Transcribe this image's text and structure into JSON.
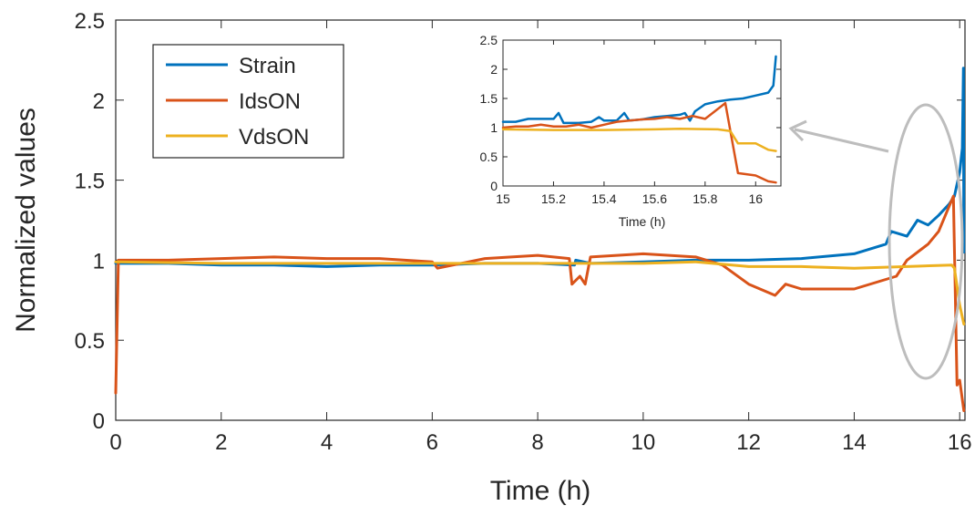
{
  "chart_data": [
    {
      "id": "main",
      "type": "line",
      "title": "",
      "xlabel": "Time (h)",
      "ylabel": "Normalized values",
      "xlim": [
        0,
        16.1
      ],
      "ylim": [
        0,
        2.5
      ],
      "xticks": [
        0,
        2,
        4,
        6,
        8,
        10,
        12,
        14,
        16
      ],
      "xtick_labels": [
        "0",
        "2",
        "4",
        "6",
        "8",
        "10",
        "12",
        "14",
        "16"
      ],
      "yticks": [
        0,
        0.5,
        1,
        1.5,
        2,
        2.5
      ],
      "ytick_labels": [
        "0",
        "0.5",
        "1",
        "1.5",
        "2",
        "2.5"
      ],
      "legend_position": "top-left",
      "grid": false,
      "series": [
        {
          "name": "Strain",
          "color": "#0072BD",
          "points": [
            [
              0,
              0.98
            ],
            [
              1,
              0.98
            ],
            [
              2,
              0.97
            ],
            [
              3,
              0.97
            ],
            [
              4,
              0.96
            ],
            [
              5,
              0.97
            ],
            [
              6,
              0.97
            ],
            [
              7,
              0.98
            ],
            [
              8,
              0.98
            ],
            [
              8.7,
              0.97
            ],
            [
              8.72,
              1.0
            ],
            [
              9,
              0.98
            ],
            [
              10,
              0.99
            ],
            [
              11,
              1.0
            ],
            [
              12,
              1.0
            ],
            [
              13,
              1.01
            ],
            [
              14,
              1.04
            ],
            [
              14.6,
              1.1
            ],
            [
              14.7,
              1.18
            ],
            [
              15,
              1.15
            ],
            [
              15.2,
              1.25
            ],
            [
              15.4,
              1.22
            ],
            [
              15.6,
              1.28
            ],
            [
              15.8,
              1.35
            ],
            [
              15.9,
              1.4
            ],
            [
              16.0,
              1.55
            ],
            [
              16.05,
              1.7
            ],
            [
              16.07,
              2.2
            ],
            [
              16.08,
              1.05
            ]
          ]
        },
        {
          "name": "IdsON",
          "color": "#D95319",
          "points": [
            [
              0,
              0.17
            ],
            [
              0.05,
              1.0
            ],
            [
              1,
              1.0
            ],
            [
              2,
              1.01
            ],
            [
              3,
              1.02
            ],
            [
              4,
              1.01
            ],
            [
              5,
              1.01
            ],
            [
              6,
              0.99
            ],
            [
              6.1,
              0.95
            ],
            [
              7,
              1.01
            ],
            [
              8,
              1.03
            ],
            [
              8.6,
              1.01
            ],
            [
              8.65,
              0.85
            ],
            [
              8.8,
              0.9
            ],
            [
              8.9,
              0.85
            ],
            [
              9.0,
              1.02
            ],
            [
              10,
              1.04
            ],
            [
              11,
              1.02
            ],
            [
              11.5,
              0.97
            ],
            [
              12,
              0.85
            ],
            [
              12.5,
              0.78
            ],
            [
              12.7,
              0.85
            ],
            [
              13,
              0.82
            ],
            [
              14,
              0.82
            ],
            [
              14.8,
              0.9
            ],
            [
              15,
              1.0
            ],
            [
              15.4,
              1.1
            ],
            [
              15.6,
              1.18
            ],
            [
              15.88,
              1.4
            ],
            [
              15.95,
              0.22
            ],
            [
              16.0,
              0.25
            ],
            [
              16.08,
              0.06
            ]
          ]
        },
        {
          "name": "VdsON",
          "color": "#EDB120",
          "points": [
            [
              0,
              0.99
            ],
            [
              2,
              0.98
            ],
            [
              4,
              0.98
            ],
            [
              6,
              0.98
            ],
            [
              8,
              0.98
            ],
            [
              10,
              0.98
            ],
            [
              11,
              0.99
            ],
            [
              12,
              0.96
            ],
            [
              13,
              0.96
            ],
            [
              14,
              0.95
            ],
            [
              15,
              0.96
            ],
            [
              15.85,
              0.97
            ],
            [
              15.9,
              0.95
            ],
            [
              16.0,
              0.72
            ],
            [
              16.08,
              0.6
            ]
          ]
        }
      ]
    },
    {
      "id": "inset",
      "type": "line",
      "title": "",
      "xlabel": "Time (h)",
      "ylabel": "",
      "xlim": [
        15,
        16.1
      ],
      "ylim": [
        0,
        2.5
      ],
      "xticks": [
        15,
        15.2,
        15.4,
        15.6,
        15.8,
        16
      ],
      "xtick_labels": [
        "15",
        "15.2",
        "15.4",
        "15.6",
        "15.8",
        "16"
      ],
      "yticks": [
        0,
        0.5,
        1,
        1.5,
        2,
        2.5
      ],
      "ytick_labels": [
        "0",
        "0.5",
        "1",
        "1.5",
        "2",
        "2.5"
      ],
      "grid": false,
      "series": [
        {
          "color": "#0072BD",
          "points": [
            [
              15,
              1.1
            ],
            [
              15.05,
              1.1
            ],
            [
              15.1,
              1.15
            ],
            [
              15.15,
              1.15
            ],
            [
              15.2,
              1.15
            ],
            [
              15.22,
              1.25
            ],
            [
              15.24,
              1.08
            ],
            [
              15.3,
              1.08
            ],
            [
              15.35,
              1.1
            ],
            [
              15.38,
              1.18
            ],
            [
              15.4,
              1.12
            ],
            [
              15.45,
              1.12
            ],
            [
              15.48,
              1.25
            ],
            [
              15.5,
              1.12
            ],
            [
              15.55,
              1.14
            ],
            [
              15.6,
              1.18
            ],
            [
              15.65,
              1.2
            ],
            [
              15.7,
              1.22
            ],
            [
              15.72,
              1.25
            ],
            [
              15.74,
              1.12
            ],
            [
              15.76,
              1.28
            ],
            [
              15.8,
              1.4
            ],
            [
              15.85,
              1.45
            ],
            [
              15.9,
              1.48
            ],
            [
              15.95,
              1.5
            ],
            [
              16.0,
              1.55
            ],
            [
              16.05,
              1.6
            ],
            [
              16.07,
              1.72
            ],
            [
              16.08,
              2.22
            ]
          ]
        },
        {
          "color": "#D95319",
          "points": [
            [
              15,
              1.0
            ],
            [
              15.05,
              1.02
            ],
            [
              15.1,
              1.02
            ],
            [
              15.15,
              1.05
            ],
            [
              15.2,
              1.02
            ],
            [
              15.25,
              1.02
            ],
            [
              15.3,
              1.05
            ],
            [
              15.35,
              1.0
            ],
            [
              15.4,
              1.05
            ],
            [
              15.45,
              1.1
            ],
            [
              15.5,
              1.12
            ],
            [
              15.55,
              1.14
            ],
            [
              15.6,
              1.15
            ],
            [
              15.65,
              1.18
            ],
            [
              15.7,
              1.15
            ],
            [
              15.75,
              1.2
            ],
            [
              15.8,
              1.15
            ],
            [
              15.88,
              1.42
            ],
            [
              15.93,
              0.22
            ],
            [
              16.0,
              0.18
            ],
            [
              16.05,
              0.08
            ],
            [
              16.08,
              0.06
            ]
          ]
        },
        {
          "color": "#EDB120",
          "points": [
            [
              15,
              0.97
            ],
            [
              15.2,
              0.96
            ],
            [
              15.4,
              0.96
            ],
            [
              15.6,
              0.97
            ],
            [
              15.7,
              0.98
            ],
            [
              15.85,
              0.97
            ],
            [
              15.9,
              0.94
            ],
            [
              15.93,
              0.73
            ],
            [
              16.0,
              0.73
            ],
            [
              16.05,
              0.62
            ],
            [
              16.08,
              0.6
            ]
          ]
        }
      ]
    }
  ]
}
